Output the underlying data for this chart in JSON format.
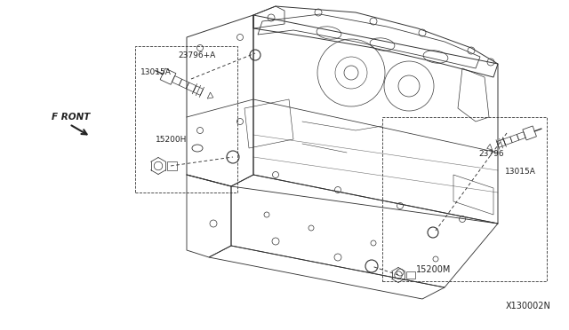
{
  "background_color": "#ffffff",
  "fig_width": 6.4,
  "fig_height": 3.72,
  "dpi": 100,
  "labels": {
    "top_left_23796A": "23796+A",
    "top_left_13015A": "13015A",
    "top_left_15200H": "15200H",
    "bot_right_23796": "23796",
    "bot_right_13015A": "13015A",
    "bot_right_15200M": "15200M",
    "front_label": "F RONT",
    "diagram_id": "X130002N"
  },
  "text_color": "#222222",
  "line_color": "#333333",
  "font_size_labels": 6.5,
  "font_size_front": 7.5,
  "font_size_id": 7
}
